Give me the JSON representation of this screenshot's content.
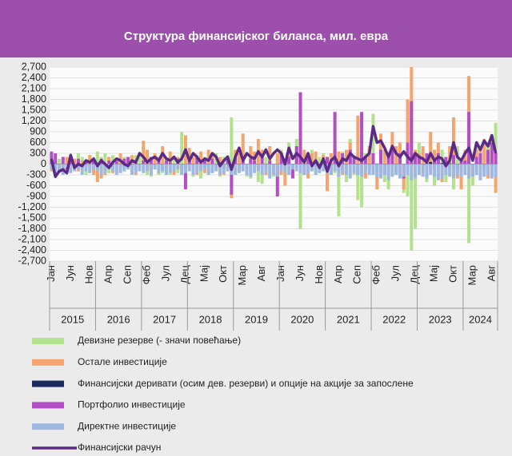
{
  "chart_data": {
    "type": "bar",
    "title": "Структура финансијског биланса, мил. евра",
    "categories": [
      "Јан",
      null,
      null,
      null,
      null,
      "Јун",
      null,
      null,
      null,
      null,
      "Нов",
      null,
      null,
      null,
      null,
      "Апр",
      null,
      null,
      null,
      null,
      "Сеп",
      null,
      null,
      null,
      null,
      "Феб",
      null,
      null,
      null,
      null,
      "Јул",
      null,
      null,
      null,
      null,
      "Дец",
      null,
      null,
      null,
      null,
      "Мај",
      null,
      null,
      null,
      null,
      "Окт",
      null,
      null,
      null,
      null,
      "Мар",
      null,
      null,
      null,
      null,
      "Авг",
      null,
      null,
      null,
      null,
      "Јан",
      null,
      null,
      null,
      null,
      "Јун",
      null,
      null,
      null,
      null,
      "Нов",
      null,
      null,
      null,
      null,
      "Апр",
      null,
      null,
      null,
      null,
      "Сеп",
      null,
      null,
      null,
      null,
      "Феб",
      null,
      null,
      null,
      null,
      "Јул",
      null,
      null,
      null,
      null,
      "Дец",
      null,
      null,
      null,
      null,
      "Мај",
      null,
      null,
      null,
      null,
      "Окт",
      null,
      null,
      null,
      null,
      "Мар",
      null,
      null,
      null,
      null,
      "Авг",
      null
    ],
    "x_groups": [
      "2015",
      "2016",
      "2017",
      "2018",
      "2019",
      "2020",
      "2021",
      "2022",
      "2023",
      "2024"
    ],
    "ylim": [
      -2700,
      2700
    ],
    "yticks": [
      {
        "value": -2700,
        "label": "-2,700"
      },
      {
        "value": -2400,
        "label": "-2,400"
      },
      {
        "value": -2100,
        "label": "-2,100"
      },
      {
        "value": -1800,
        "label": "-1,800"
      },
      {
        "value": -1500,
        "label": "-1,500"
      },
      {
        "value": -1200,
        "label": "-1,200"
      },
      -900,
      -600,
      -300,
      0,
      300,
      600,
      900,
      {
        "value": 1200,
        "label": "1,200"
      },
      {
        "value": 1500,
        "label": "1,500"
      },
      {
        "value": 1800,
        "label": "1,800"
      },
      {
        "value": 2100,
        "label": "2,100"
      },
      {
        "value": 2400,
        "label": "2,400"
      },
      {
        "value": 2700,
        "label": "2,700"
      }
    ],
    "grid": true,
    "series": [
      {
        "name": "Девизне резерве (- значи повећање)",
        "color": "#b3e28c",
        "type": "bar",
        "values": [
          300,
          -200,
          150,
          -100,
          200,
          250,
          -150,
          300,
          200,
          -300,
          250,
          150,
          350,
          200,
          300,
          -250,
          250,
          150,
          -200,
          200,
          100,
          -150,
          250,
          300,
          200,
          -300,
          -350,
          250,
          -300,
          -250,
          150,
          -300,
          200,
          -250,
          900,
          150,
          300,
          -350,
          250,
          -400,
          200,
          -300,
          -250,
          300,
          -350,
          200,
          250,
          1300,
          -300,
          -200,
          300,
          -350,
          -400,
          300,
          -500,
          -550,
          200,
          -300,
          -350,
          300,
          400,
          -300,
          600,
          -400,
          700,
          -1800,
          300,
          -250,
          400,
          -300,
          200,
          300,
          -400,
          300,
          -250,
          -1450,
          350,
          -500,
          700,
          -300,
          -1000,
          -1200,
          300,
          400,
          1400,
          -400,
          300,
          -500,
          -700,
          350,
          -300,
          -400,
          -800,
          -900,
          -2400,
          -1800,
          600,
          -300,
          -500,
          700,
          -600,
          -400,
          400,
          -500,
          -300,
          -700,
          500,
          -400,
          300,
          -2200,
          -600,
          500,
          -300,
          400,
          600,
          800,
          1150
        ]
      },
      {
        "name": "Остале инвестиције",
        "color": "#f4a46c",
        "type": "bar",
        "values": [
          -200,
          100,
          -150,
          -250,
          200,
          -100,
          150,
          -200,
          100,
          -150,
          250,
          -300,
          -500,
          -400,
          -300,
          200,
          -250,
          -200,
          300,
          -150,
          200,
          250,
          -300,
          -200,
          650,
          400,
          -250,
          300,
          200,
          500,
          -200,
          350,
          -300,
          200,
          -150,
          800,
          450,
          200,
          -300,
          350,
          -250,
          400,
          300,
          -200,
          200,
          -300,
          -150,
          -950,
          400,
          300,
          850,
          -300,
          500,
          350,
          700,
          400,
          -300,
          500,
          -250,
          300,
          -300,
          -600,
          250,
          -350,
          300,
          -250,
          400,
          -400,
          300,
          350,
          -200,
          250,
          -750,
          300,
          500,
          350,
          -300,
          400,
          600,
          -200,
          1350,
          300,
          -400,
          500,
          300,
          -700,
          850,
          400,
          -300,
          900,
          500,
          600,
          -700,
          1800,
          2700,
          400,
          300,
          500,
          -400,
          900,
          400,
          600,
          -500,
          -300,
          500,
          1300,
          -400,
          -700,
          400,
          2450,
          -300,
          400,
          500,
          700,
          -400,
          300,
          -800
        ]
      },
      {
        "name": "Финансијски деривати (осим дев. резерви) и опције на акције за запослене",
        "color": "#1b2a5e",
        "type": "bar",
        "values": [
          10,
          -5,
          0,
          5,
          -10,
          5,
          0,
          -5,
          10,
          0,
          -5,
          5,
          5,
          0,
          -5,
          10,
          0,
          -10,
          5,
          0,
          -5,
          5,
          0,
          10,
          0,
          5,
          -5,
          0,
          10,
          -5,
          0,
          5,
          -10,
          0,
          5,
          0,
          5,
          -5,
          0,
          10,
          0,
          -5,
          5,
          0,
          -5,
          10,
          0,
          -5,
          10,
          0,
          -10,
          5,
          0,
          5,
          -5,
          0,
          10,
          -5,
          0,
          5,
          0,
          -10,
          15,
          5,
          -5,
          0,
          10,
          -5,
          0,
          5,
          -10,
          0,
          5,
          10,
          -5,
          0,
          15,
          -10,
          5,
          0,
          -5,
          10,
          0,
          5,
          -20,
          15,
          30,
          -10,
          20,
          0,
          -15,
          25,
          10,
          -20,
          30,
          15,
          20,
          -30,
          40,
          60,
          -20,
          50,
          30,
          -40,
          20,
          100,
          -30,
          50,
          80,
          150,
          -50,
          60,
          40,
          -30,
          50,
          -40,
          30
        ]
      },
      {
        "name": "Портфолио инвестиције",
        "color": "#b24fc2",
        "type": "bar",
        "values": [
          350,
          300,
          -100,
          200,
          -150,
          100,
          -50,
          150,
          -100,
          50,
          -80,
          100,
          -100,
          150,
          -200,
          100,
          -50,
          80,
          -100,
          150,
          200,
          -100,
          50,
          -150,
          100,
          -150,
          200,
          -100,
          150,
          -200,
          100,
          50,
          -100,
          150,
          -100,
          -700,
          150,
          -100,
          200,
          -150,
          100,
          -50,
          150,
          -100,
          50,
          -100,
          200,
          -850,
          200,
          -150,
          100,
          -200,
          150,
          100,
          -100,
          200,
          -150,
          100,
          -150,
          -900,
          300,
          -100,
          200,
          -400,
          500,
          2000,
          -300,
          200,
          -150,
          100,
          -200,
          150,
          200,
          -300,
          1450,
          -200,
          300,
          -150,
          400,
          200,
          -300,
          1450,
          200,
          -100,
          300,
          -200,
          400,
          -300,
          200,
          500,
          -250,
          300,
          -400,
          600,
          1750,
          300,
          200,
          -100,
          300,
          -200,
          150,
          300,
          -150,
          200,
          -100,
          250,
          -200,
          150,
          100,
          1450,
          -300,
          200,
          300,
          -200,
          400,
          600,
          300
        ]
      },
      {
        "name": "Директне инвестиције",
        "color": "#9fb8e2",
        "type": "bar",
        "values": [
          -150,
          -250,
          -200,
          -300,
          -100,
          -250,
          -200,
          -150,
          -300,
          -200,
          -250,
          -150,
          -200,
          -300,
          -250,
          -150,
          -200,
          -300,
          -250,
          -200,
          -150,
          -300,
          -250,
          -200,
          -250,
          -200,
          -300,
          -150,
          -250,
          -200,
          -300,
          -250,
          -200,
          -150,
          -300,
          -250,
          -200,
          -300,
          -250,
          -200,
          -150,
          -300,
          -250,
          -200,
          -300,
          -250,
          -200,
          -300,
          -300,
          -250,
          -200,
          -300,
          -350,
          -250,
          -200,
          -300,
          -250,
          -400,
          -300,
          -350,
          -200,
          -250,
          -300,
          -150,
          -200,
          -250,
          -300,
          -250,
          -200,
          -300,
          -250,
          -200,
          -250,
          -300,
          -200,
          -350,
          -250,
          -300,
          -400,
          -250,
          -300,
          -350,
          -250,
          -300,
          -300,
          -350,
          -400,
          -300,
          -450,
          -350,
          -300,
          -400,
          -350,
          -300,
          -450,
          -400,
          -300,
          -350,
          -400,
          -300,
          -350,
          -450,
          -400,
          -300,
          -350,
          -400,
          -300,
          -350,
          -300,
          -400,
          -350,
          -300,
          -450,
          -350,
          -300,
          -400,
          -350
        ]
      },
      {
        "name": "Финансијски рачун",
        "color": "#5a2a86",
        "type": "line",
        "values": [
          150,
          -350,
          -200,
          -150,
          -250,
          250,
          -100,
          0,
          -50,
          100,
          50,
          150,
          -50,
          100,
          0,
          -100,
          50,
          150,
          100,
          0,
          -50,
          100,
          50,
          300,
          200,
          50,
          150,
          200,
          100,
          300,
          150,
          100,
          200,
          50,
          150,
          400,
          100,
          300,
          200,
          50,
          150,
          100,
          300,
          200,
          -50,
          100,
          200,
          -150,
          200,
          450,
          100,
          300,
          200,
          150,
          350,
          200,
          400,
          150,
          300,
          400,
          300,
          0,
          450,
          150,
          300,
          200,
          50,
          300,
          -50,
          100,
          -100,
          150,
          -200,
          100,
          200,
          -50,
          150,
          100,
          300,
          200,
          150,
          100,
          200,
          300,
          1050,
          600,
          650,
          450,
          200,
          500,
          300,
          200,
          350,
          200,
          100,
          300,
          200,
          150,
          50,
          300,
          100,
          200,
          150,
          -50,
          100,
          600,
          200,
          100,
          300,
          450,
          100,
          600,
          400,
          650,
          500,
          800,
          300
        ]
      }
    ]
  }
}
